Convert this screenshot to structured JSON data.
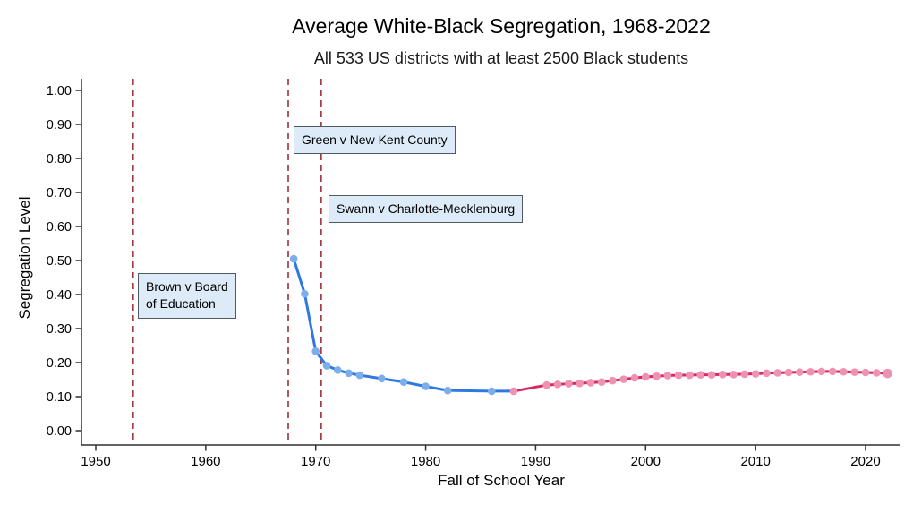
{
  "chart_data": {
    "type": "line",
    "title": "Average White-Black Segregation, 1968-2022",
    "subtitle": "All 533 US districts with at least 2500 Black students",
    "xlabel": "Fall of School Year",
    "ylabel": "Segregation Level",
    "x_ticks": [
      "1950",
      "1960",
      "1970",
      "1980",
      "1990",
      "2000",
      "2010",
      "2020"
    ],
    "y_ticks": [
      "0.00",
      "0.10",
      "0.20",
      "0.30",
      "0.40",
      "0.50",
      "0.60",
      "0.70",
      "0.80",
      "0.90",
      "1.00"
    ],
    "xlim": [
      1948.7,
      2023.2
    ],
    "ylim": [
      0.0,
      1.03
    ],
    "grid": false,
    "legend": "none",
    "series": [
      {
        "name": "1968-1986",
        "x": [
          1968,
          1969,
          1970,
          1971,
          1972,
          1973,
          1974,
          1976,
          1978,
          1980,
          1982,
          1986
        ],
        "values": [
          0.505,
          0.402,
          0.233,
          0.191,
          0.178,
          0.169,
          0.163,
          0.153,
          0.143,
          0.13,
          0.118,
          0.116
        ]
      },
      {
        "name": "1988-2022",
        "x": [
          1988,
          1991,
          1992,
          1993,
          1994,
          1995,
          1996,
          1997,
          1998,
          1999,
          2000,
          2001,
          2002,
          2003,
          2004,
          2005,
          2006,
          2007,
          2008,
          2009,
          2010,
          2011,
          2012,
          2013,
          2014,
          2015,
          2016,
          2017,
          2018,
          2019,
          2020,
          2021,
          2022
        ],
        "values": [
          0.116,
          0.134,
          0.136,
          0.138,
          0.139,
          0.141,
          0.143,
          0.147,
          0.151,
          0.155,
          0.158,
          0.16,
          0.162,
          0.163,
          0.163,
          0.164,
          0.164,
          0.165,
          0.165,
          0.166,
          0.167,
          0.169,
          0.17,
          0.171,
          0.172,
          0.173,
          0.174,
          0.174,
          0.173,
          0.172,
          0.171,
          0.17,
          0.168
        ]
      }
    ],
    "connector": {
      "x": [
        1986,
        1988
      ],
      "values": [
        0.116,
        0.116
      ]
    },
    "vlines": [
      {
        "year": 1953.4,
        "label": "Brown v Board\nof Education"
      },
      {
        "year": 1967.5,
        "label": "Green v New Kent County"
      },
      {
        "year": 1970.5,
        "label": "Swann v Charlotte-Mecklenburg"
      }
    ],
    "colors": {
      "blue_line": "#2e78e3",
      "blue_marker": "#7caeec",
      "pink_line": "#d62a63",
      "pink_marker": "#ef92b1",
      "vline": "#a33b45",
      "annotation_fill": "#dcebf7",
      "annotation_border": "#4f5a63",
      "axis": "#303030",
      "text": "#000000"
    }
  }
}
